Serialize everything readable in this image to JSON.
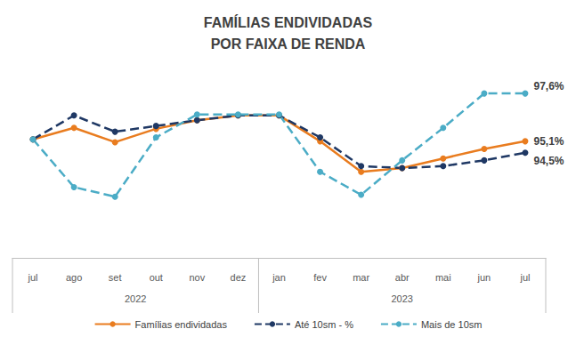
{
  "chart_data": {
    "type": "line",
    "title": "FAMÍLIAS ENDIVIDADAS\nPOR FAIXA DE RENDA",
    "categories": [
      "jul",
      "ago",
      "set",
      "out",
      "nov",
      "dez",
      "jan",
      "fev",
      "mar",
      "abr",
      "mai",
      "jun",
      "jul"
    ],
    "category_groups": [
      {
        "label": "2022",
        "start": 0,
        "end": 5
      },
      {
        "label": "2023",
        "start": 6,
        "end": 12
      }
    ],
    "series": [
      {
        "name": "Famílias endividadas",
        "color": "#E97C1F",
        "marker": "circle",
        "line_style": "solid",
        "values": [
          95.2,
          95.8,
          95.05,
          95.75,
          96.2,
          96.45,
          96.45,
          95.1,
          93.5,
          93.7,
          94.2,
          94.7,
          95.1
        ],
        "value_labels": [
          null,
          null,
          null,
          null,
          null,
          null,
          null,
          null,
          null,
          null,
          null,
          null,
          "95,1%"
        ]
      },
      {
        "name": "Até 10sm - %",
        "color": "#1F3864",
        "marker": "circle",
        "line_style": "dashed",
        "values": [
          95.2,
          96.45,
          95.6,
          95.9,
          96.2,
          96.45,
          96.45,
          95.3,
          93.8,
          93.7,
          93.8,
          94.1,
          94.5
        ],
        "value_labels": [
          null,
          null,
          null,
          null,
          null,
          null,
          null,
          null,
          null,
          null,
          null,
          null,
          "94,5%"
        ]
      },
      {
        "name": "Mais de 10sm",
        "color": "#4BACC6",
        "marker": "circle",
        "line_style": "dashed",
        "values": [
          95.2,
          92.7,
          92.2,
          95.3,
          96.5,
          96.5,
          96.5,
          93.5,
          92.3,
          94.1,
          95.8,
          97.6,
          97.6
        ],
        "value_labels": [
          null,
          null,
          null,
          null,
          null,
          null,
          null,
          null,
          null,
          null,
          null,
          null,
          "97,6%"
        ]
      }
    ],
    "ylim": [
      89,
      99
    ],
    "grid": false,
    "legend": "bottom",
    "tick_labels": "x"
  }
}
